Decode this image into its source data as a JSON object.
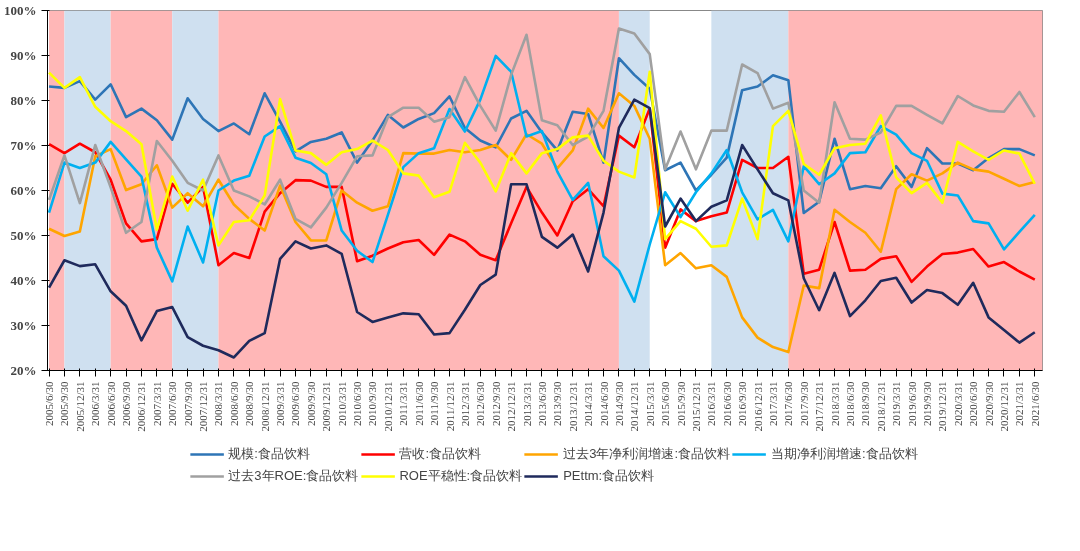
{
  "chart_data": {
    "type": "line",
    "categories": [
      "2005/6/30",
      "2005/9/30",
      "2005/12/31",
      "2006/3/31",
      "2006/6/30",
      "2006/9/30",
      "2006/12/31",
      "2007/3/31",
      "2007/6/30",
      "2007/9/30",
      "2007/12/31",
      "2008/3/31",
      "2008/6/30",
      "2008/9/30",
      "2008/12/31",
      "2009/3/31",
      "2009/6/30",
      "2009/9/30",
      "2009/12/31",
      "2010/3/31",
      "2010/6/30",
      "2010/9/30",
      "2010/12/31",
      "2011/3/31",
      "2011/6/30",
      "2011/9/30",
      "2011/12/31",
      "2012/3/31",
      "2012/6/30",
      "2012/9/30",
      "2012/12/31",
      "2013/3/31",
      "2013/6/30",
      "2013/9/30",
      "2013/12/31",
      "2014/3/31",
      "2014/6/30",
      "2014/9/30",
      "2014/12/31",
      "2015/3/31",
      "2015/6/30",
      "2015/9/30",
      "2015/12/31",
      "2016/3/31",
      "2016/6/30",
      "2016/9/30",
      "2016/12/31",
      "2017/3/31",
      "2017/6/30",
      "2017/9/30",
      "2017/12/31",
      "2018/3/31",
      "2018/6/30",
      "2018/9/30",
      "2018/12/31",
      "2019/3/31",
      "2019/6/30",
      "2019/9/30",
      "2019/12/31",
      "2020/3/31",
      "2020/6/30",
      "2020/9/30",
      "2020/12/31",
      "2021/3/31",
      "2021/6/30"
    ],
    "series": [
      {
        "name": "规模:食品饮料",
        "color": "#2e75b6",
        "values": [
          83.1,
          82.8,
          84.3,
          80.2,
          83.6,
          76.3,
          78.2,
          75.6,
          71.3,
          80.5,
          75.9,
          73.2,
          74.9,
          72.5,
          81.6,
          75.3,
          68.7,
          70.8,
          71.5,
          72.9,
          66.2,
          71.1,
          76.8,
          74.0,
          75.9,
          77.2,
          80.9,
          73.9,
          71.1,
          69.6,
          76.0,
          77.7,
          72.9,
          68.9,
          77.5,
          77.0,
          66.2,
          89.4,
          85.7,
          82.6,
          64.5,
          66.2,
          60.0,
          63.5,
          67.3,
          82.3,
          83.1,
          85.6,
          84.5,
          55.0,
          57.5,
          71.5,
          60.3,
          61.0,
          60.5,
          65.4,
          60.8,
          69.4,
          66.0,
          66.0,
          64.5,
          67.2,
          69.2,
          69.2,
          67.8
        ]
      },
      {
        "name": "营收:食品饮料",
        "color": "#ff0000",
        "values": [
          70.3,
          68.3,
          70.4,
          68.5,
          62.4,
          52.7,
          48.7,
          49.2,
          61.5,
          57.3,
          60.8,
          43.4,
          46.1,
          45.0,
          55.3,
          59.4,
          62.3,
          62.2,
          60.8,
          60.8,
          44.3,
          45.5,
          47.1,
          48.5,
          49.0,
          45.7,
          50.2,
          48.7,
          45.7,
          44.5,
          52.7,
          60.8,
          55.1,
          50.0,
          57.6,
          60.3,
          56.5,
          72.2,
          69.6,
          78.2,
          47.3,
          55.8,
          53.2,
          54.3,
          55.1,
          66.8,
          65.0,
          65.0,
          67.5,
          41.5,
          42.4,
          53.0,
          42.2,
          42.4,
          44.8,
          45.4,
          39.7,
          43.1,
          45.9,
          46.2,
          47.0,
          43.1,
          44.1,
          42.0,
          40.2
        ]
      },
      {
        "name": "过去3年净利润增速:食品饮料",
        "color": "#ffa500",
        "values": [
          51.5,
          49.9,
          50.9,
          67.6,
          69.2,
          60.1,
          61.4,
          65.6,
          56.2,
          59.4,
          56.5,
          62.4,
          56.9,
          53.7,
          51.1,
          61.1,
          53.0,
          48.9,
          48.9,
          60.0,
          57.3,
          55.5,
          56.5,
          68.3,
          68.2,
          68.2,
          69.0,
          68.5,
          69.0,
          70.1,
          66.8,
          72.5,
          70.4,
          64.9,
          68.9,
          78.2,
          73.9,
          81.6,
          78.8,
          71.5,
          43.4,
          46.1,
          42.7,
          43.4,
          40.8,
          31.8,
          27.3,
          25.2,
          24.1,
          38.9,
          38.3,
          55.7,
          53.0,
          50.6,
          46.4,
          60.3,
          63.6,
          62.2,
          63.8,
          66.2,
          64.7,
          64.2,
          62.6,
          61.0,
          61.9
        ]
      },
      {
        "name": "当期净利润增速:食品饮料",
        "color": "#00b0f0",
        "values": [
          55.1,
          66.2,
          65.0,
          66.2,
          70.8,
          66.9,
          63.1,
          47.3,
          39.8,
          52.0,
          44.0,
          60.0,
          62.2,
          63.3,
          72.0,
          74.3,
          67.3,
          66.1,
          63.6,
          51.1,
          46.6,
          44.1,
          54.6,
          65.2,
          68.3,
          69.4,
          78.1,
          73.1,
          80.2,
          89.9,
          86.4,
          72.0,
          73.2,
          64.2,
          57.9,
          61.7,
          45.4,
          42.2,
          35.3,
          48.0,
          59.6,
          54.1,
          59.6,
          63.8,
          69.0,
          59.6,
          53.6,
          55.7,
          48.7,
          65.4,
          61.4,
          63.8,
          68.3,
          68.5,
          74.3,
          72.4,
          68.3,
          66.6,
          59.3,
          58.9,
          53.2,
          52.7,
          46.9,
          50.8,
          54.6
        ]
      },
      {
        "name": "过去3年ROE:食品饮料",
        "color": "#a0a0a0",
        "values": [
          57.9,
          67.8,
          57.2,
          70.1,
          60.7,
          50.6,
          53.0,
          71.0,
          66.6,
          61.7,
          60.0,
          67.8,
          60.0,
          58.7,
          56.9,
          62.4,
          53.7,
          51.8,
          56.2,
          61.7,
          67.6,
          67.8,
          76.3,
          78.4,
          78.4,
          75.3,
          76.3,
          85.2,
          78.8,
          73.3,
          85.7,
          94.6,
          75.6,
          74.5,
          70.1,
          72.0,
          77.7,
          96.0,
          94.9,
          90.3,
          64.7,
          73.1,
          64.7,
          73.3,
          73.3,
          88.0,
          86.1,
          78.2,
          79.5,
          60.0,
          57.3,
          79.6,
          71.5,
          71.3,
          72.9,
          78.8,
          78.8,
          76.8,
          74.9,
          81.0,
          78.9,
          77.7,
          77.5,
          81.9,
          76.3
        ]
      },
      {
        "name": "ROE平稳性:食品饮料",
        "color": "#ffff00",
        "values": [
          86.2,
          82.8,
          85.2,
          78.6,
          75.4,
          73.2,
          70.3,
          51.3,
          63.1,
          55.5,
          62.4,
          47.8,
          53.0,
          53.4,
          58.9,
          80.3,
          68.9,
          68.3,
          65.7,
          68.5,
          69.2,
          71.1,
          69.0,
          63.8,
          63.3,
          58.5,
          59.7,
          70.6,
          66.2,
          59.8,
          68.3,
          63.8,
          68.3,
          69.2,
          71.8,
          72.2,
          66.6,
          64.2,
          62.9,
          86.4,
          49.2,
          53.2,
          51.5,
          47.5,
          47.8,
          58.2,
          49.2,
          74.3,
          77.7,
          65.9,
          63.5,
          69.4,
          70.1,
          70.4,
          76.7,
          62.9,
          59.4,
          61.7,
          57.3,
          70.8,
          68.7,
          66.8,
          68.9,
          68.2,
          61.5
        ]
      },
      {
        "name": "PEttm:食品饮料",
        "color": "#1f2a5c",
        "values": [
          38.4,
          44.5,
          43.2,
          43.6,
          37.6,
          34.4,
          26.7,
          33.2,
          34.1,
          27.4,
          25.5,
          24.5,
          22.9,
          26.6,
          28.3,
          44.8,
          48.7,
          47.1,
          47.8,
          45.9,
          33.0,
          30.8,
          31.8,
          32.7,
          32.5,
          28.0,
          28.3,
          33.5,
          39.0,
          41.3,
          61.4,
          61.4,
          49.7,
          47.3,
          50.2,
          42.0,
          55.1,
          73.9,
          80.2,
          78.3,
          52.0,
          58.2,
          53.2,
          56.4,
          57.8,
          70.1,
          64.7,
          59.4,
          57.8,
          40.5,
          33.4,
          41.7,
          32.1,
          35.6,
          39.9,
          40.6,
          35.1,
          37.9,
          37.2,
          34.6,
          39.5,
          31.8,
          29.0,
          26.2,
          28.5
        ]
      }
    ],
    "ylim": [
      20,
      100
    ],
    "yticks": [
      {
        "value": 20,
        "label": "20%"
      },
      {
        "value": 30,
        "label": "30%"
      },
      {
        "value": 40,
        "label": "40%"
      },
      {
        "value": 50,
        "label": "50%"
      },
      {
        "value": 60,
        "label": "60%"
      },
      {
        "value": 70,
        "label": "70%"
      },
      {
        "value": 80,
        "label": "80%"
      },
      {
        "value": 90,
        "label": "90%"
      },
      {
        "value": 100,
        "label": "100%"
      }
    ],
    "bands": [
      {
        "axis": "x",
        "from": "2005/6/30",
        "to": "2005/9/30",
        "color": "#ffb7b7"
      },
      {
        "axis": "x",
        "from": "2005/9/30",
        "to": "2006/6/30",
        "color": "#cfe0f0"
      },
      {
        "axis": "x",
        "from": "2006/6/30",
        "to": "2007/6/30",
        "color": "#ffb7b7"
      },
      {
        "axis": "x",
        "from": "2007/6/30",
        "to": "2008/3/31",
        "color": "#cfe0f0"
      },
      {
        "axis": "x",
        "from": "2008/3/31",
        "to": "2014/9/30",
        "color": "#ffb7b7"
      },
      {
        "axis": "x",
        "from": "2014/9/30",
        "to": "2015/3/31",
        "color": "#cfe0f0"
      },
      {
        "axis": "x",
        "from": "2016/3/31",
        "to": "2017/6/30",
        "color": "#cfe0f0"
      },
      {
        "axis": "x",
        "from": "2017/6/30",
        "to": "2021/6/30",
        "color": "#ffb7b7"
      }
    ],
    "grid": false,
    "legend": "bottom",
    "line_style": "solid",
    "marker": "none"
  }
}
